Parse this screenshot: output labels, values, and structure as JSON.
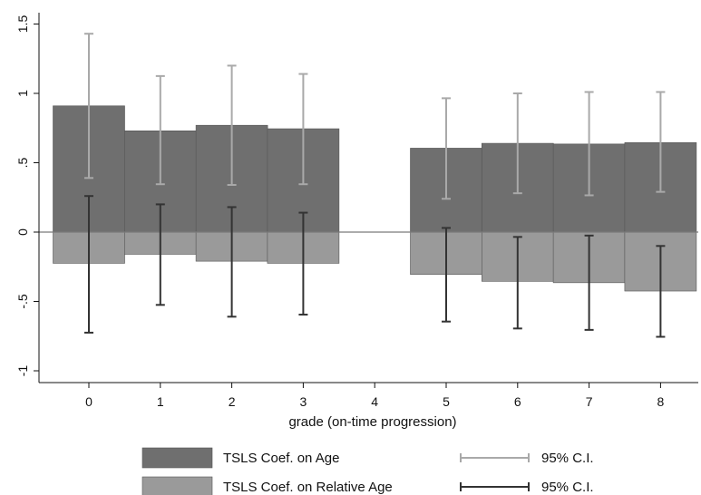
{
  "chart_data": {
    "type": "bar",
    "title": "",
    "xlabel": "grade (on-time progression)",
    "ylabel": "",
    "categories": [
      "0",
      "1",
      "2",
      "3",
      "4",
      "5",
      "6",
      "7",
      "8"
    ],
    "ylim": [
      -1.1,
      1.6
    ],
    "yticks": [
      {
        "value": 1.5,
        "label": "1.5"
      },
      {
        "value": 1,
        "label": "1"
      },
      {
        "value": 0.5,
        "label": ".5"
      },
      {
        "value": 0,
        "label": "0"
      },
      {
        "value": -0.5,
        "label": "-.5"
      },
      {
        "value": -1,
        "label": "-1"
      }
    ],
    "grid": false,
    "legend_position": "bottom",
    "series": [
      {
        "name": "TSLS Coef. on Age",
        "color": "#6f6f6f",
        "values": [
          0.91,
          0.73,
          0.77,
          0.745,
          null,
          0.605,
          0.64,
          0.635,
          0.645
        ],
        "ci_low": [
          0.39,
          0.345,
          0.34,
          0.345,
          null,
          0.24,
          0.28,
          0.265,
          0.29
        ],
        "ci_high": [
          1.43,
          1.125,
          1.2,
          1.14,
          null,
          0.965,
          1.0,
          1.01,
          1.01
        ],
        "ci_color": "#a9a9a9"
      },
      {
        "name": "TSLS Coef. on Relative Age",
        "color": "#9a9a9a",
        "values": [
          -0.225,
          -0.16,
          -0.21,
          -0.225,
          null,
          -0.305,
          -0.355,
          -0.365,
          -0.425
        ],
        "ci_low": [
          -0.725,
          -0.525,
          -0.61,
          -0.595,
          null,
          -0.645,
          -0.695,
          -0.705,
          -0.755
        ],
        "ci_high": [
          0.26,
          0.2,
          0.18,
          0.14,
          null,
          0.03,
          -0.035,
          -0.025,
          -0.1
        ],
        "ci_color": "#333333"
      }
    ],
    "legend": [
      {
        "label": "TSLS Coef. on Age",
        "kind": "box",
        "color": "#6f6f6f"
      },
      {
        "label": "95% C.I.",
        "kind": "ci",
        "color": "#a9a9a9"
      },
      {
        "label": "TSLS Coef. on Relative Age",
        "kind": "box",
        "color": "#9a9a9a"
      },
      {
        "label": "95% C.I.",
        "kind": "ci",
        "color": "#333333"
      }
    ]
  }
}
